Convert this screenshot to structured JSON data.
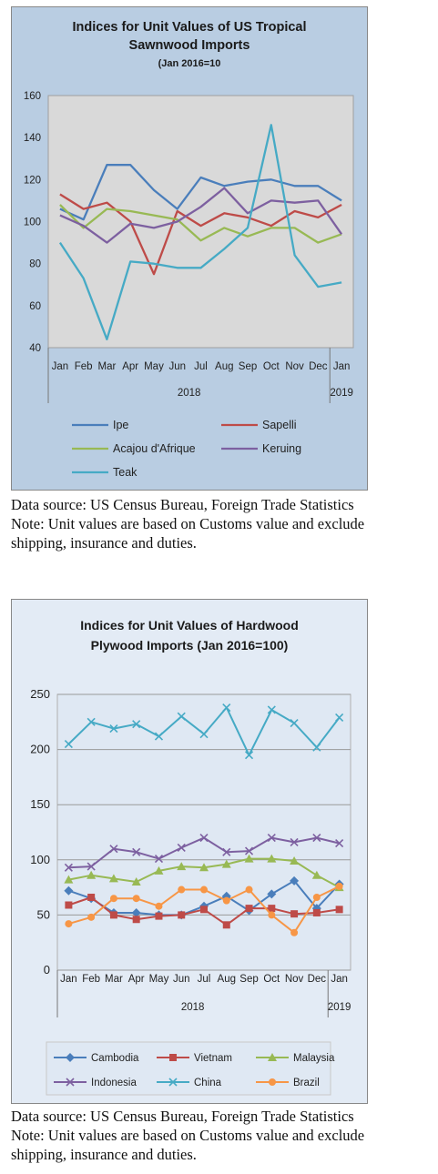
{
  "charts": [
    {
      "title_line1": "Indices for Unit Values of US Tropical",
      "title_line2": "Sawnwood Imports",
      "subtitle": "(Jan 2016=10",
      "note_line1": "Data source: US Census Bureau, Foreign Trade Statistics",
      "note_line2": "Note: Unit values are based on Customs value and exclude",
      "note_line3": "shipping, insurance and duties."
    },
    {
      "title_line1": "Indices for Unit Values of Hardwood",
      "title_line2": "Plywood Imports (Jan 2016=100)",
      "note_line1": "Data source: US Census Bureau, Foreign Trade Statistics",
      "note_line2": "Note: Unit values are based on Customs value and exclude",
      "note_line3": "shipping, insurance and duties."
    }
  ],
  "chart_data": [
    {
      "type": "line",
      "title": "Indices for Unit Values of US Tropical Sawnwood Imports",
      "subtitle": "(Jan 2016=10",
      "categories": [
        "Jan",
        "Feb",
        "Mar",
        "Apr",
        "May",
        "Jun",
        "Jul",
        "Aug",
        "Sep",
        "Oct",
        "Nov",
        "Dec",
        "Jan"
      ],
      "year_labels": [
        "2018",
        "2019"
      ],
      "ylim": [
        40,
        160
      ],
      "yticks": [
        40,
        60,
        80,
        100,
        120,
        140,
        160
      ],
      "grid": false,
      "legend": "bottom",
      "series": [
        {
          "name": "Ipe",
          "color": "#4a7ebb",
          "values": [
            106,
            101,
            127,
            127,
            115,
            106,
            121,
            117,
            119,
            120,
            117,
            117,
            110
          ]
        },
        {
          "name": "Sapelli",
          "color": "#be4b48",
          "values": [
            113,
            106,
            109,
            100,
            75,
            105,
            98,
            104,
            102,
            98,
            105,
            102,
            108
          ]
        },
        {
          "name": "Acajou d'Afrique",
          "color": "#98b954",
          "values": [
            108,
            97,
            106,
            105,
            103,
            101,
            91,
            97,
            93,
            97,
            97,
            90,
            94
          ]
        },
        {
          "name": "Keruing",
          "color": "#7d60a0",
          "values": [
            103,
            98,
            90,
            99,
            97,
            100,
            107,
            116,
            104,
            110,
            109,
            110,
            94
          ]
        },
        {
          "name": "Teak",
          "color": "#46aac5",
          "values": [
            90,
            73,
            44,
            81,
            80,
            78,
            78,
            87,
            97,
            146,
            84,
            69,
            71
          ]
        }
      ]
    },
    {
      "type": "line",
      "title": "Indices for Unit Values of Hardwood Plywood Imports (Jan 2016=100)",
      "categories": [
        "Jan",
        "Feb",
        "Mar",
        "Apr",
        "May",
        "Jun",
        "Jul",
        "Aug",
        "Sep",
        "Oct",
        "Nov",
        "Dec",
        "Jan"
      ],
      "year_labels": [
        "2018",
        "2019"
      ],
      "ylim": [
        0,
        250
      ],
      "yticks": [
        0,
        50,
        100,
        150,
        200,
        250
      ],
      "grid": true,
      "legend": "bottom",
      "series": [
        {
          "name": "Cambodia",
          "color": "#4a7ebb",
          "marker": "diamond",
          "values": [
            72,
            65,
            52,
            52,
            50,
            50,
            58,
            67,
            54,
            69,
            81,
            56,
            78
          ]
        },
        {
          "name": "Vietnam",
          "color": "#be4b48",
          "marker": "square",
          "values": [
            59,
            66,
            50,
            46,
            49,
            50,
            55,
            41,
            56,
            56,
            51,
            52,
            55
          ]
        },
        {
          "name": "Malaysia",
          "color": "#98b954",
          "marker": "triangle",
          "values": [
            82,
            86,
            83,
            80,
            90,
            94,
            93,
            96,
            101,
            101,
            99,
            86,
            75
          ]
        },
        {
          "name": "Indonesia",
          "color": "#7d60a0",
          "marker": "x",
          "values": [
            93,
            94,
            110,
            107,
            101,
            111,
            120,
            107,
            108,
            120,
            116,
            120,
            115
          ]
        },
        {
          "name": "China",
          "color": "#46aac5",
          "marker": "x",
          "values": [
            205,
            225,
            219,
            223,
            212,
            230,
            214,
            238,
            195,
            236,
            224,
            202,
            229
          ]
        },
        {
          "name": "Brazil",
          "color": "#f79646",
          "marker": "circle",
          "values": [
            42,
            48,
            65,
            65,
            58,
            73,
            73,
            63,
            73,
            50,
            34,
            66,
            76
          ]
        }
      ]
    }
  ]
}
